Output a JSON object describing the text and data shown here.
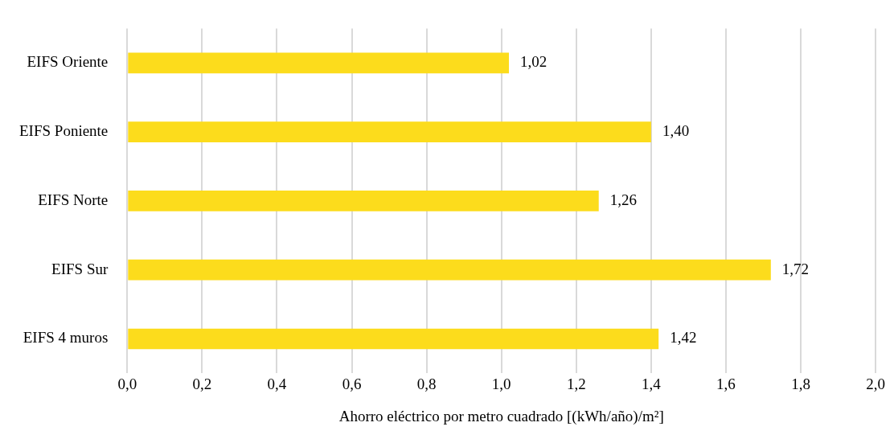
{
  "chart_data": {
    "type": "bar",
    "orientation": "horizontal",
    "categories": [
      "EIFS Oriente",
      "EIFS Poniente",
      "EIFS Norte",
      "EIFS Sur",
      "EIFS 4 muros"
    ],
    "values": [
      1.02,
      1.4,
      1.26,
      1.72,
      1.42
    ],
    "value_labels": [
      "1,02",
      "1,40",
      "1,26",
      "1,72",
      "1,42"
    ],
    "color": "#fcdc1c",
    "xlabel": "Ahorro eléctrico por metro cuadrado [(kWh/año)/m²]",
    "xlim": [
      0,
      2
    ],
    "xticks": [
      {
        "value": 0,
        "label": "0,0"
      },
      {
        "value": 0.2,
        "label": "0,2"
      },
      {
        "value": 0.4,
        "label": "0,4"
      },
      {
        "value": 0.6,
        "label": "0,6"
      },
      {
        "value": 0.8,
        "label": "0,8"
      },
      {
        "value": 1.0,
        "label": "1,0"
      },
      {
        "value": 1.2,
        "label": "1,2"
      },
      {
        "value": 1.4,
        "label": "1,4"
      },
      {
        "value": 1.6,
        "label": "1,6"
      },
      {
        "value": 1.8,
        "label": "1,8"
      },
      {
        "value": 2.0,
        "label": "2,0"
      }
    ],
    "grid": "x",
    "legend": false
  }
}
